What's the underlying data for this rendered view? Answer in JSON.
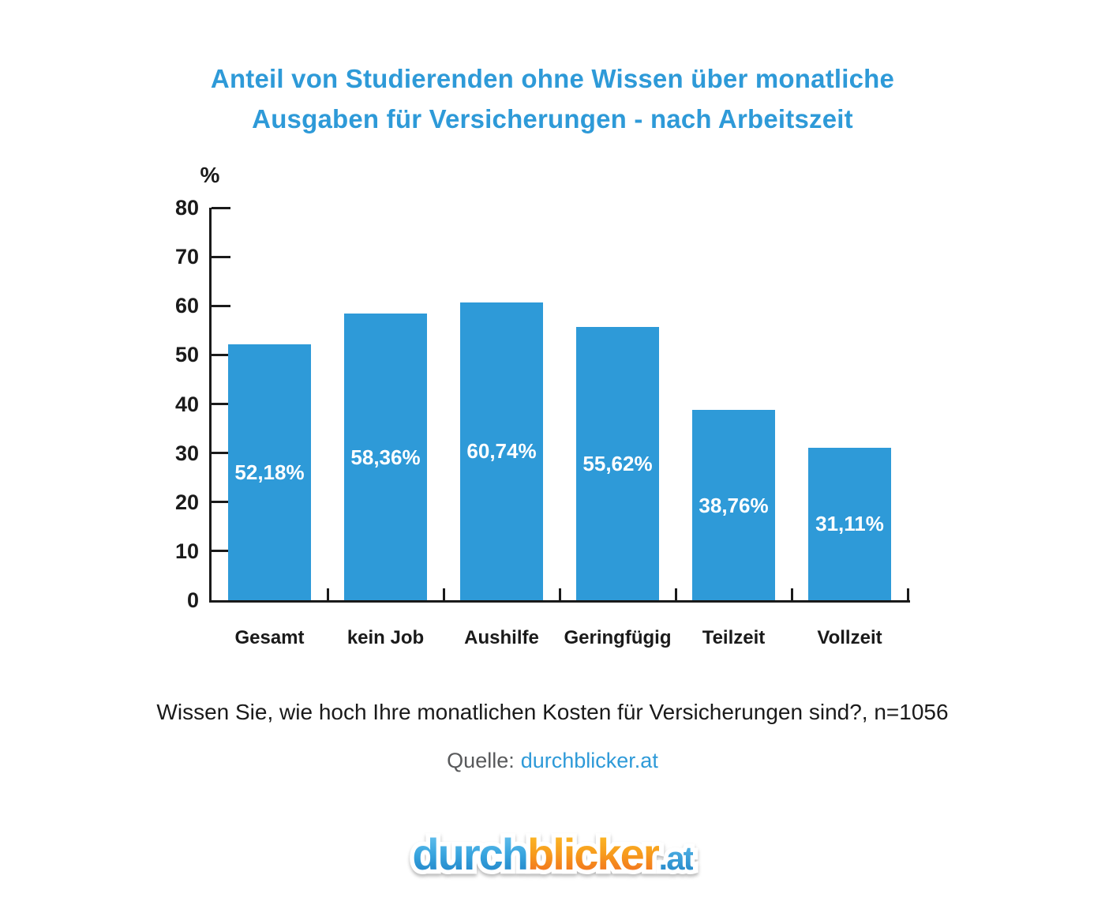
{
  "title": {
    "line1": "Anteil von Studierenden ohne Wissen über monatliche",
    "line2": "Ausgaben für Versicherungen - nach Arbeitszeit"
  },
  "chart_data": {
    "type": "bar",
    "categories": [
      "Gesamt",
      "kein Job",
      "Aushilfe",
      "Geringfügig",
      "Teilzeit",
      "Vollzeit"
    ],
    "values": [
      52.18,
      58.36,
      60.74,
      55.62,
      38.76,
      31.11
    ],
    "value_labels": [
      "52,18%",
      "58,36%",
      "60,74%",
      "55,62%",
      "38,76%",
      "31,11%"
    ],
    "title": "Anteil von Studierenden ohne Wissen über monatliche Ausgaben für Versicherungen - nach Arbeitszeit",
    "xlabel": "",
    "ylabel": "%",
    "ylim": [
      0,
      80
    ],
    "yticks": [
      0,
      10,
      20,
      30,
      40,
      50,
      60,
      70,
      80
    ],
    "grid": false,
    "legend": false,
    "bar_color": "#2E9AD8"
  },
  "footer": {
    "question": "Wissen Sie, wie hoch Ihre monatlichen Kosten für Versicherungen sind?, n=1056",
    "source_label": "Quelle:",
    "source_link": "durchblicker.at"
  },
  "logo": {
    "part_blue": "durch",
    "part_orange": "blicker",
    "part_tld": ".at"
  },
  "colors": {
    "accent_blue": "#2E9AD8",
    "bar_blue": "#2E9AD8",
    "axis_black": "#1A1A1A",
    "source_gray": "#58595B",
    "logo_blue_top": "#6FC7F0",
    "logo_blue_bottom": "#1B7EC3",
    "logo_orange_top": "#FCC028",
    "logo_orange_bottom": "#F0661E"
  }
}
